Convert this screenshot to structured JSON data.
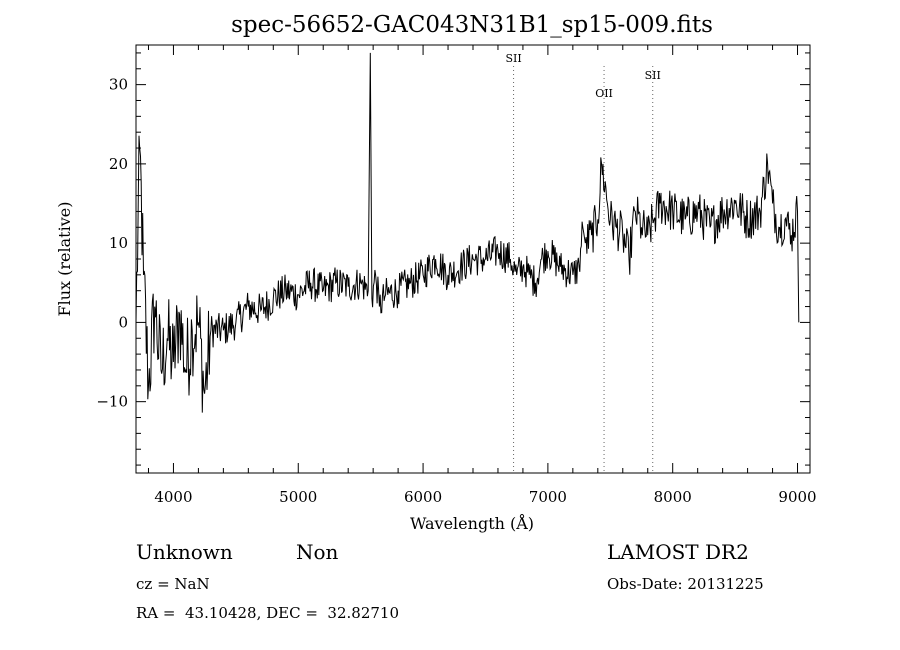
{
  "chart_data": {
    "type": "line",
    "title": "spec-56652-GAC043N31B1_sp15-009.fits",
    "xlabel": "Wavelength (Å)",
    "ylabel": "Flux (relative)",
    "xlim": [
      3700,
      9100
    ],
    "ylim": [
      -19,
      35
    ],
    "xticks": [
      4000,
      5000,
      6000,
      7000,
      8000,
      9000
    ],
    "xtick_labels": [
      "4000",
      "5000",
      "6000",
      "7000",
      "8000",
      "9000"
    ],
    "yticks": [
      -10,
      0,
      10,
      20,
      30
    ],
    "ytick_labels": [
      "−10",
      "0",
      "10",
      "20",
      "30"
    ],
    "grid": false,
    "line_color": "#000000",
    "marker_color": "#666666",
    "line_markers": [
      {
        "name": "SII",
        "wavelength": 6725
      },
      {
        "name": "OII",
        "wavelength": 7450
      },
      {
        "name": "SII",
        "wavelength": 7840
      }
    ],
    "series": [
      {
        "values_x": [
          3700,
          3730,
          3760,
          3800,
          3850,
          3900,
          3950,
          4000,
          4050,
          4100,
          4150,
          4200,
          4250,
          4300,
          4400,
          4500,
          4600,
          4700,
          4800,
          4900,
          5000,
          5100,
          5200,
          5300,
          5400,
          5500,
          5560,
          5577,
          5590,
          5620,
          5650,
          5700,
          5800,
          5900,
          6000,
          6100,
          6200,
          6300,
          6400,
          6500,
          6600,
          6700,
          6750,
          6800,
          6850,
          6900,
          6950,
          7000,
          7100,
          7200,
          7250,
          7280,
          7300,
          7350,
          7400,
          7430,
          7500,
          7550,
          7600,
          7650,
          7700,
          7750,
          7800,
          7850,
          7900,
          8000,
          8100,
          8200,
          8300,
          8400,
          8500,
          8600,
          8700,
          8760,
          8800,
          8850,
          8900,
          8950,
          9000,
          9010
        ],
        "values_y": [
          0,
          22,
          6,
          -8,
          2,
          -6,
          -2,
          -5,
          1,
          -6,
          -1,
          0,
          -9,
          -1,
          -1,
          0,
          2,
          1.5,
          3,
          4,
          3.5,
          5,
          4,
          5,
          4.5,
          5,
          4,
          34,
          3,
          6,
          2,
          3.5,
          4,
          5,
          6,
          8,
          6,
          7,
          8,
          8,
          9,
          8,
          6,
          7,
          6,
          5,
          8,
          9,
          7,
          6,
          7,
          12,
          10,
          11,
          13,
          20,
          13,
          12,
          11,
          8,
          14,
          12,
          11,
          13,
          15,
          14,
          13,
          14,
          12,
          14,
          15,
          13,
          14,
          20,
          15,
          12,
          13,
          11,
          14,
          0
        ]
      }
    ]
  },
  "info": {
    "class_label": "Unknown",
    "subclass_label": "Non",
    "survey": "LAMOST DR2",
    "cz": "cz = NaN",
    "obs_date": "Obs-Date: 20131225",
    "radec": "RA =  43.10428, DEC =  32.82710"
  }
}
